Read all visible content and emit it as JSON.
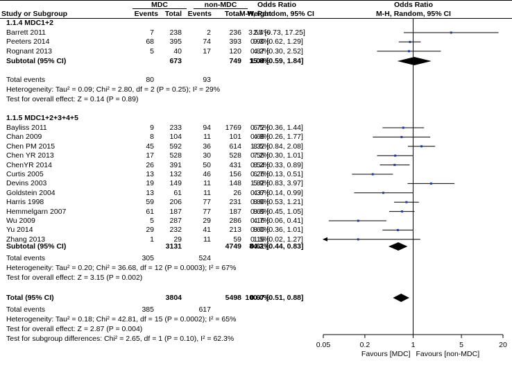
{
  "header": {
    "group1": "MDC",
    "group2": "non-MDC",
    "odds_ratio_text_title": "Odds Ratio",
    "odds_ratio_plot_title": "Odds Ratio",
    "col_study": "Study or Subgroup",
    "col_events1": "Events",
    "col_total1": "Total",
    "col_events2": "Events",
    "col_total2": "Total",
    "col_weight": "Weight",
    "col_method_text": "M-H, Random, 95% CI",
    "col_method_plot": "M-H, Random, 95% CI"
  },
  "subgroups": [
    {
      "title": "1.1.4 MDC1+2",
      "studies": [
        {
          "name": "Barrett 2011",
          "e1": "7",
          "t1": "238",
          "e2": "2",
          "t2": "236",
          "weight": "2.4%",
          "ci_text": "3.55 [0.73, 17.25]"
        },
        {
          "name": "Peeters 2014",
          "e1": "68",
          "t1": "395",
          "e2": "74",
          "t2": "393",
          "weight": "9.3%",
          "ci_text": "0.90 [0.62, 1.29]"
        },
        {
          "name": "Rognant 2013",
          "e1": "5",
          "t1": "40",
          "e2": "17",
          "t2": "120",
          "weight": "4.2%",
          "ci_text": "0.87 [0.30, 2.52]"
        }
      ],
      "subtotal": {
        "label": "Subtotal (95% CI)",
        "t1": "673",
        "t2": "749",
        "weight": "15.8%",
        "ci_text": "1.04 [0.59, 1.84]"
      },
      "events": {
        "label": "Total events",
        "e1": "80",
        "e2": "93"
      },
      "heterogeneity": "Heterogeneity: Tau² = 0.09; Chi² = 2.80, df = 2 (P = 0.25); I² = 29%",
      "overall": "Test for overall effect: Z = 0.14 (P = 0.89)"
    },
    {
      "title": "1.1.5 MDC1+2+3+4+5",
      "studies": [
        {
          "name": "Bayliss 2011",
          "e1": "9",
          "t1": "233",
          "e2": "94",
          "t2": "1769",
          "weight": "6.5%",
          "ci_text": "0.72 [0.36, 1.44]"
        },
        {
          "name": "Chan 2009",
          "e1": "8",
          "t1": "104",
          "e2": "11",
          "t2": "101",
          "weight": "4.8%",
          "ci_text": "0.68 [0.26, 1.77]"
        },
        {
          "name": "Chen PM 2015",
          "e1": "45",
          "t1": "592",
          "e2": "36",
          "t2": "614",
          "weight": "8.5%",
          "ci_text": "1.32 [0.84, 2.08]"
        },
        {
          "name": "Chen YR 2013",
          "e1": "17",
          "t1": "528",
          "e2": "30",
          "t2": "528",
          "weight": "7.2%",
          "ci_text": "0.55 [0.30, 1.01]"
        },
        {
          "name": "ChenYR 2014",
          "e1": "26",
          "t1": "391",
          "e2": "50",
          "t2": "431",
          "weight": "8.2%",
          "ci_text": "0.54 [0.33, 0.89]"
        },
        {
          "name": "Curtis 2005",
          "e1": "13",
          "t1": "132",
          "e2": "46",
          "t2": "156",
          "weight": "6.7%",
          "ci_text": "0.26 [0.13, 0.51]"
        },
        {
          "name": "Devins 2003",
          "e1": "19",
          "t1": "149",
          "e2": "11",
          "t2": "148",
          "weight": "5.9%",
          "ci_text": "1.82 [0.83, 3.97]"
        },
        {
          "name": "Goldstein 2004",
          "e1": "13",
          "t1": "61",
          "e2": "11",
          "t2": "26",
          "weight": "4.6%",
          "ci_text": "0.37 [0.14, 0.99]"
        },
        {
          "name": "Harris 1998",
          "e1": "59",
          "t1": "206",
          "e2": "77",
          "t2": "231",
          "weight": "8.9%",
          "ci_text": "0.80 [0.53, 1.21]"
        },
        {
          "name": "Hemmelgarn 2007",
          "e1": "61",
          "t1": "187",
          "e2": "77",
          "t2": "187",
          "weight": "8.8%",
          "ci_text": "0.69 [0.45, 1.05]"
        },
        {
          "name": "Wu 2009",
          "e1": "5",
          "t1": "287",
          "e2": "29",
          "t2": "286",
          "weight": "4.7%",
          "ci_text": "0.16 [0.06, 0.41]"
        },
        {
          "name": "Yu 2014",
          "e1": "29",
          "t1": "232",
          "e2": "41",
          "t2": "213",
          "weight": "8.0%",
          "ci_text": "0.60 [0.36, 1.01]"
        },
        {
          "name": "Zhang  2013",
          "e1": "1",
          "t1": "29",
          "e2": "11",
          "t2": "59",
          "weight": "1.5%",
          "ci_text": "0.16 [0.02, 1.27]"
        }
      ],
      "subtotal": {
        "label": "Subtotal (95% CI)",
        "t1": "3131",
        "t2": "4749",
        "weight": "84.2%",
        "ci_text": "0.61 [0.44, 0.83]"
      },
      "events": {
        "label": "Total events",
        "e1": "305",
        "e2": "524"
      },
      "heterogeneity": "Heterogeneity: Tau² = 0.20; Chi² = 36.68, df = 12 (P = 0.0003); I² = 67%",
      "overall": "Test for overall effect: Z = 3.15 (P = 0.002)"
    }
  ],
  "total": {
    "label": "Total (95% CI)",
    "t1": "3804",
    "t2": "5498",
    "weight": "100.0%",
    "ci_text": "0.67 [0.51, 0.88]"
  },
  "total_events": {
    "label": "Total events",
    "e1": "385",
    "e2": "617"
  },
  "total_heterogeneity": "Heterogeneity: Tau² = 0.18; Chi² = 42.81, df = 15 (P = 0.0002); I² = 65%",
  "total_overall": "Test for overall effect: Z = 2.87 (P = 0.004)",
  "subgroup_differences": "Test for subgroup differences: Chi² = 2.65, df = 1 (P = 0.10), I² = 62.3%",
  "colors": {
    "point": "#1f3d99",
    "line": "#000000"
  },
  "chart_data": {
    "type": "forest",
    "x_scale": "log",
    "xlim": [
      0.05,
      20
    ],
    "x_ticks": [
      0.05,
      0.2,
      1,
      5,
      20
    ],
    "x_tick_labels": [
      "0.05",
      "0.2",
      "1",
      "5",
      "20"
    ],
    "xlabel_left": "Favours [MDC]",
    "xlabel_right": "Favours [non-MDC]",
    "null_line": 1,
    "studies": [
      {
        "or": 3.55,
        "lo": 0.73,
        "hi": 17.25
      },
      {
        "or": 0.9,
        "lo": 0.62,
        "hi": 1.29
      },
      {
        "or": 0.87,
        "lo": 0.3,
        "hi": 2.52
      },
      {
        "or": 0.72,
        "lo": 0.36,
        "hi": 1.44
      },
      {
        "or": 0.68,
        "lo": 0.26,
        "hi": 1.77
      },
      {
        "or": 1.32,
        "lo": 0.84,
        "hi": 2.08
      },
      {
        "or": 0.55,
        "lo": 0.3,
        "hi": 1.01
      },
      {
        "or": 0.54,
        "lo": 0.33,
        "hi": 0.89
      },
      {
        "or": 0.26,
        "lo": 0.13,
        "hi": 0.51
      },
      {
        "or": 1.82,
        "lo": 0.83,
        "hi": 3.97
      },
      {
        "or": 0.37,
        "lo": 0.14,
        "hi": 0.99
      },
      {
        "or": 0.8,
        "lo": 0.53,
        "hi": 1.21
      },
      {
        "or": 0.69,
        "lo": 0.45,
        "hi": 1.05
      },
      {
        "or": 0.16,
        "lo": 0.06,
        "hi": 0.41
      },
      {
        "or": 0.6,
        "lo": 0.36,
        "hi": 1.01
      },
      {
        "or": 0.16,
        "lo": 0.02,
        "hi": 1.27
      }
    ],
    "summaries": [
      {
        "or": 1.04,
        "lo": 0.59,
        "hi": 1.84
      },
      {
        "or": 0.61,
        "lo": 0.44,
        "hi": 0.83
      },
      {
        "or": 0.67,
        "lo": 0.51,
        "hi": 0.88
      }
    ]
  }
}
